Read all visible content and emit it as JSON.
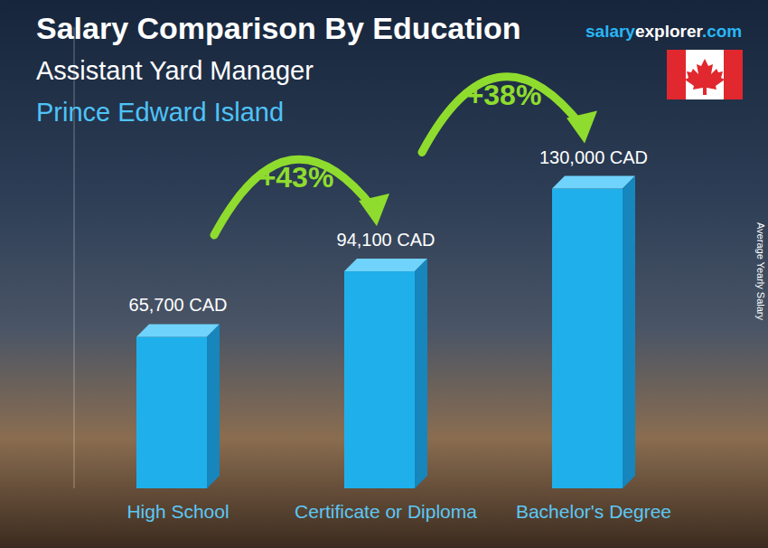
{
  "chart_data": {
    "type": "bar",
    "title": "Salary Comparison By Education",
    "subtitle": "Assistant Yard Manager",
    "location": "Prince Edward Island",
    "source": [
      "salary",
      "explorer",
      ".com"
    ],
    "ylabel": "Average Yearly Salary",
    "categories": [
      "High School",
      "Certificate or Diploma",
      "Bachelor's Degree"
    ],
    "values": [
      65700,
      94100,
      130000
    ],
    "value_labels": [
      "65,700 CAD",
      "94,100 CAD",
      "130,000 CAD"
    ],
    "annotations": [
      "+43%",
      "+38%"
    ],
    "color": "#1fb0ec",
    "ylim": [
      0,
      200000
    ],
    "tick_labels": "x",
    "data_labels": true
  }
}
